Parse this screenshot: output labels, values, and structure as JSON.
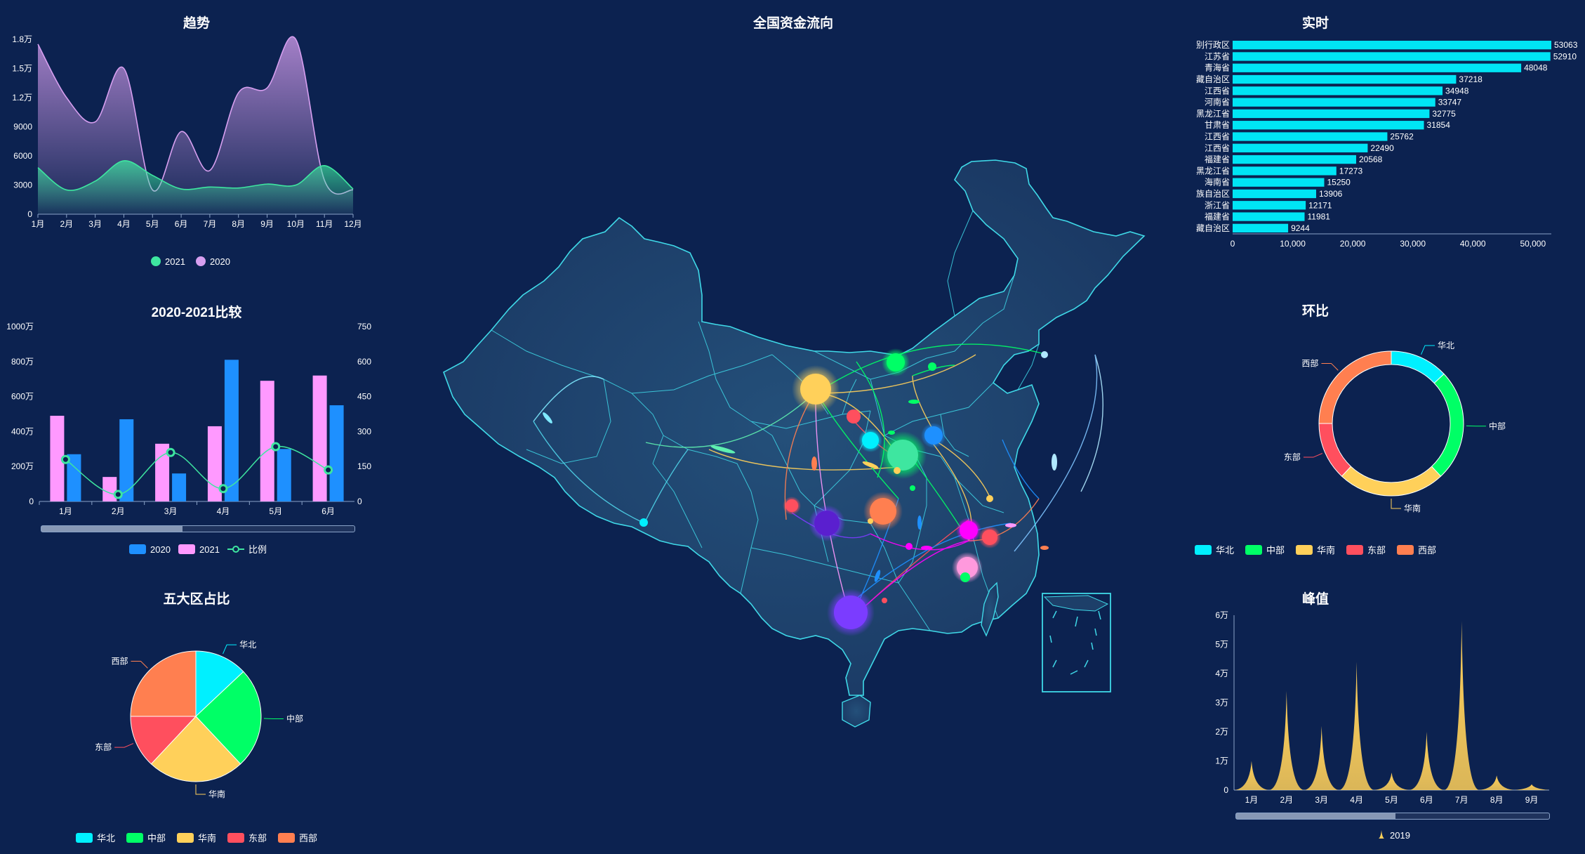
{
  "colors": {
    "background": "#0c2250",
    "cyan": "#00f0ff",
    "green": "#00ff66",
    "yellow": "#ffd05a",
    "red": "#ff4f5e",
    "orange": "#ff7f50",
    "blue": "#1e90ff",
    "pink": "#ff99ff",
    "purple": "#7b3cff",
    "map_fill": "#1d3f69",
    "map_stroke": "#3fd9e8"
  },
  "panels": {
    "trend": {
      "title": "趋势"
    },
    "compare": {
      "title": "2020-2021比较"
    },
    "share": {
      "title": "五大区占比"
    },
    "map": {
      "title": "全国资金流向"
    },
    "realtime": {
      "title": "实时"
    },
    "ring": {
      "title": "环比"
    },
    "peak": {
      "title": "峰值"
    }
  },
  "chart_data": [
    {
      "id": "trend",
      "type": "area",
      "title": "趋势",
      "categories": [
        "1月",
        "2月",
        "3月",
        "4月",
        "5月",
        "6月",
        "7月",
        "8月",
        "9月",
        "10月",
        "11月",
        "12月"
      ],
      "yticks": [
        "0",
        "3000",
        "6000",
        "9000",
        "1.2万",
        "1.5万",
        "1.8万"
      ],
      "ylim": [
        0,
        18000
      ],
      "series": [
        {
          "name": "2021",
          "color": "#3ee6a0",
          "values": [
            4800,
            2500,
            3400,
            5500,
            4000,
            2600,
            2800,
            2700,
            3100,
            3000,
            5000,
            2600
          ]
        },
        {
          "name": "2020",
          "color": "#d79ff0",
          "values": [
            17500,
            12000,
            9500,
            15000,
            2500,
            8500,
            4500,
            12500,
            13000,
            18000,
            3500,
            2500
          ]
        }
      ],
      "legend": [
        "2021",
        "2020"
      ]
    },
    {
      "id": "compare",
      "type": "bar",
      "title": "2020-2021比较",
      "categories": [
        "1月",
        "2月",
        "3月",
        "4月",
        "5月",
        "6月"
      ],
      "yticks_left": [
        "0",
        "200万",
        "400万",
        "600万",
        "800万",
        "1000万"
      ],
      "yticks_right": [
        "0",
        "150",
        "300",
        "450",
        "600",
        "750"
      ],
      "ylim": [
        0,
        10000000
      ],
      "y2lim": [
        0,
        750
      ],
      "series": [
        {
          "name": "2020",
          "color": "#1e90ff",
          "values": [
            2700000,
            4700000,
            1600000,
            8100000,
            3000000,
            5500000
          ]
        },
        {
          "name": "2021",
          "color": "#ff99ff",
          "values": [
            4900000,
            1400000,
            3300000,
            4300000,
            6900000,
            7200000
          ]
        },
        {
          "name": "比例",
          "color": "#3ee6a0",
          "values": [
            180,
            30,
            210,
            55,
            235,
            135
          ]
        }
      ],
      "legend": [
        "2020",
        "2021",
        "比例"
      ]
    },
    {
      "id": "share",
      "type": "pie",
      "title": "五大区占比",
      "slices": [
        {
          "name": "华北",
          "value": 13,
          "color": "#00f0ff"
        },
        {
          "name": "中部",
          "value": 25,
          "color": "#00ff66"
        },
        {
          "name": "华南",
          "value": 24,
          "color": "#ffd05a"
        },
        {
          "name": "东部",
          "value": 13,
          "color": "#ff4f5e"
        },
        {
          "name": "西部",
          "value": 25,
          "color": "#ff7f50"
        }
      ],
      "legend": [
        "华北",
        "中部",
        "华南",
        "东部",
        "西部"
      ]
    },
    {
      "id": "realtime",
      "type": "bar",
      "title": "实时",
      "orientation": "horizontal",
      "categories": [
        "别行政区",
        "江苏省",
        "青海省",
        "藏自治区",
        "江西省",
        "河南省",
        "黑龙江省",
        "甘肃省",
        "江西省",
        "江西省",
        "福建省",
        "黑龙江省",
        "海南省",
        "族自治区",
        "浙江省",
        "福建省",
        "藏自治区"
      ],
      "values": [
        53063,
        52910,
        48048,
        37218,
        34948,
        33747,
        32775,
        31854,
        25762,
        22490,
        20568,
        17273,
        15250,
        13906,
        12171,
        11981,
        9244
      ],
      "xticks": [
        "0",
        "10,000",
        "20,000",
        "30,000",
        "40,000",
        "50,000"
      ],
      "xlim": [
        0,
        53063
      ],
      "color": "#00e5f5"
    },
    {
      "id": "ring",
      "type": "pie",
      "title": "环比",
      "donut": true,
      "slices": [
        {
          "name": "华北",
          "value": 13,
          "color": "#00f0ff"
        },
        {
          "name": "中部",
          "value": 25,
          "color": "#00ff66"
        },
        {
          "name": "华南",
          "value": 24,
          "color": "#ffd05a"
        },
        {
          "name": "东部",
          "value": 13,
          "color": "#ff4f5e"
        },
        {
          "name": "西部",
          "value": 25,
          "color": "#ff7f50"
        }
      ],
      "legend": [
        "华北",
        "中部",
        "华南",
        "东部",
        "西部"
      ]
    },
    {
      "id": "peak",
      "type": "area",
      "title": "峰值",
      "categories": [
        "1月",
        "2月",
        "3月",
        "4月",
        "5月",
        "6月",
        "7月",
        "8月",
        "9月"
      ],
      "yticks": [
        "0",
        "1万",
        "2万",
        "3万",
        "4万",
        "5万",
        "6万"
      ],
      "ylim": [
        0,
        60000
      ],
      "series": [
        {
          "name": "2019",
          "color": "#ffd05a",
          "values": [
            10000,
            34000,
            22000,
            44000,
            6000,
            20000,
            58000,
            5000,
            2000
          ]
        }
      ],
      "legend": [
        "2019"
      ]
    }
  ]
}
